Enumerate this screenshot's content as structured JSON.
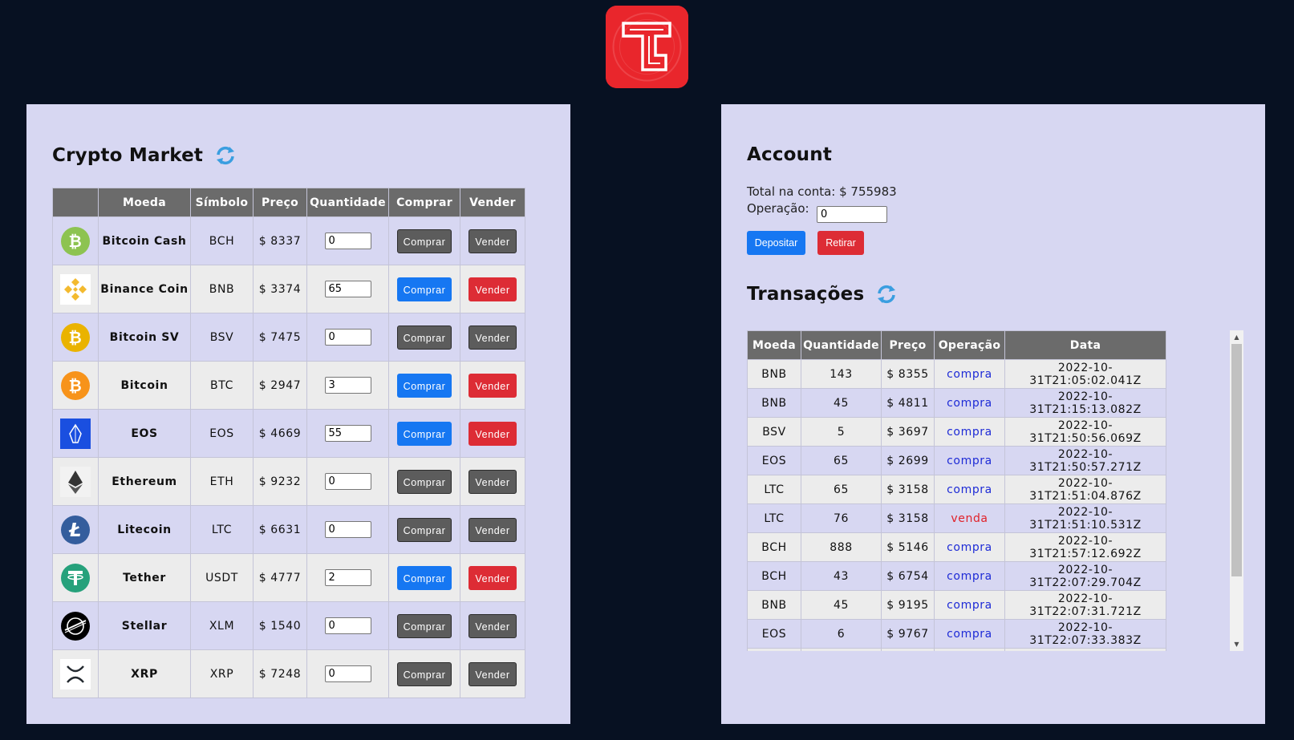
{
  "market": {
    "title": "Crypto Market",
    "headers": {
      "logo": "",
      "name": "Moeda",
      "symbol": "Símbolo",
      "price": "Preço",
      "qty": "Quantidade",
      "buy": "Comprar",
      "sell": "Vender"
    },
    "rows": [
      {
        "name": "Bitcoin Cash",
        "symbol": "BCH",
        "price": "$ 8337",
        "qty": "0",
        "buy": "Comprar",
        "sell": "Vender",
        "active": false,
        "icon": "bitcoin-cash-icon",
        "color": "#8dc351"
      },
      {
        "name": "Binance Coin",
        "symbol": "BNB",
        "price": "$ 3374",
        "qty": "65",
        "buy": "Comprar",
        "sell": "Vender",
        "active": true,
        "icon": "binance-coin-icon",
        "color": "#f3ba2f"
      },
      {
        "name": "Bitcoin SV",
        "symbol": "BSV",
        "price": "$ 7475",
        "qty": "0",
        "buy": "Comprar",
        "sell": "Vender",
        "active": false,
        "icon": "bitcoin-sv-icon",
        "color": "#eab300"
      },
      {
        "name": "Bitcoin",
        "symbol": "BTC",
        "price": "$ 2947",
        "qty": "3",
        "buy": "Comprar",
        "sell": "Vender",
        "active": true,
        "icon": "bitcoin-icon",
        "color": "#f7931a"
      },
      {
        "name": "EOS",
        "symbol": "EOS",
        "price": "$ 4669",
        "qty": "55",
        "buy": "Comprar",
        "sell": "Vender",
        "active": true,
        "icon": "eos-icon",
        "color": "#1a4fe0"
      },
      {
        "name": "Ethereum",
        "symbol": "ETH",
        "price": "$ 9232",
        "qty": "0",
        "buy": "Comprar",
        "sell": "Vender",
        "active": false,
        "icon": "ethereum-icon",
        "color": "#343434"
      },
      {
        "name": "Litecoin",
        "symbol": "LTC",
        "price": "$ 6631",
        "qty": "0",
        "buy": "Comprar",
        "sell": "Vender",
        "active": false,
        "icon": "litecoin-icon",
        "color": "#345d9d"
      },
      {
        "name": "Tether",
        "symbol": "USDT",
        "price": "$ 4777",
        "qty": "2",
        "buy": "Comprar",
        "sell": "Vender",
        "active": true,
        "icon": "tether-icon",
        "color": "#26a17b"
      },
      {
        "name": "Stellar",
        "symbol": "XLM",
        "price": "$ 1540",
        "qty": "0",
        "buy": "Comprar",
        "sell": "Vender",
        "active": false,
        "icon": "stellar-icon",
        "color": "#000000"
      },
      {
        "name": "XRP",
        "symbol": "XRP",
        "price": "$ 7248",
        "qty": "0",
        "buy": "Comprar",
        "sell": "Vender",
        "active": false,
        "icon": "xrp-icon",
        "color": "#23292f"
      }
    ]
  },
  "account": {
    "title": "Account",
    "total": "Total na conta: $ 755983",
    "op_label": "Operação:",
    "op_value": "0",
    "deposit": "Depositar",
    "withdraw": "Retirar"
  },
  "transactions": {
    "title": "Transações",
    "headers": {
      "coin": "Moeda",
      "qty": "Quantidade",
      "price": "Preço",
      "op": "Operação",
      "date": "Data"
    },
    "rows": [
      {
        "coin": "BNB",
        "qty": "143",
        "price": "$ 8355",
        "op": "compra",
        "date": "2022-10-31T21:05:02.041Z"
      },
      {
        "coin": "BNB",
        "qty": "45",
        "price": "$ 4811",
        "op": "compra",
        "date": "2022-10-31T21:15:13.082Z"
      },
      {
        "coin": "BSV",
        "qty": "5",
        "price": "$ 3697",
        "op": "compra",
        "date": "2022-10-31T21:50:56.069Z"
      },
      {
        "coin": "EOS",
        "qty": "65",
        "price": "$ 2699",
        "op": "compra",
        "date": "2022-10-31T21:50:57.271Z"
      },
      {
        "coin": "LTC",
        "qty": "65",
        "price": "$ 3158",
        "op": "compra",
        "date": "2022-10-31T21:51:04.876Z"
      },
      {
        "coin": "LTC",
        "qty": "76",
        "price": "$ 3158",
        "op": "venda",
        "date": "2022-10-31T21:51:10.531Z"
      },
      {
        "coin": "BCH",
        "qty": "888",
        "price": "$ 5146",
        "op": "compra",
        "date": "2022-10-31T21:57:12.692Z"
      },
      {
        "coin": "BCH",
        "qty": "43",
        "price": "$ 6754",
        "op": "compra",
        "date": "2022-10-31T22:07:29.704Z"
      },
      {
        "coin": "BNB",
        "qty": "45",
        "price": "$ 9195",
        "op": "compra",
        "date": "2022-10-31T22:07:31.721Z"
      },
      {
        "coin": "EOS",
        "qty": "6",
        "price": "$ 9767",
        "op": "compra",
        "date": "2022-10-31T22:07:33.383Z"
      },
      {
        "coin": "",
        "qty": "",
        "price": "",
        "op": "",
        "date": ""
      }
    ]
  },
  "colors": {
    "background": "#071122",
    "panel": "#d7d7f2",
    "header": "#6b6b6b",
    "buy": "#1677f2",
    "sell": "#dd2c35",
    "inactive": "#5c5c5c",
    "logo": "#e9262c"
  }
}
